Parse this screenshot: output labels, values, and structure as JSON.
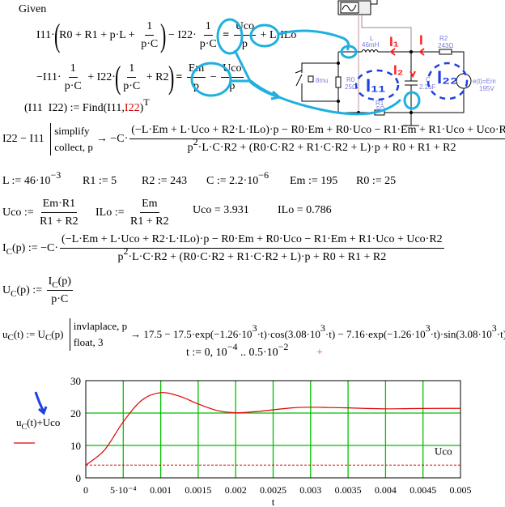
{
  "math": [
    {
      "id": "given",
      "tokens": [
        {
          "t": "Given"
        }
      ]
    },
    {
      "id": "equation-1",
      "tokens": [
        {
          "t": "I11·"
        },
        {
          "p": "("
        },
        {
          "t": "R0 + R1 + p·L + "
        },
        {
          "f": [
            "1",
            "p·C"
          ]
        },
        {
          "p": ")"
        },
        {
          "t": " − I22·"
        },
        {
          "f": [
            "1",
            "p·C"
          ]
        },
        {
          "t": " = ",
          "b": 1
        },
        {
          "f": [
            "Uco",
            "p"
          ]
        },
        {
          "t": " + L·ILo"
        }
      ]
    },
    {
      "id": "equation-2",
      "tokens": [
        {
          "t": "−I11·"
        },
        {
          "f": [
            "1",
            "p·C"
          ]
        },
        {
          "t": " + I22·"
        },
        {
          "p": "("
        },
        {
          "f": [
            "1",
            "p·C"
          ]
        },
        {
          "t": " + R2"
        },
        {
          "p": ")"
        },
        {
          "t": " = ",
          "b": 1
        },
        {
          "f": [
            "Em",
            "p"
          ]
        },
        {
          "t": " − "
        },
        {
          "f": [
            "Uco",
            "p"
          ]
        }
      ]
    },
    {
      "id": "find",
      "tokens": [
        {
          "t": "(I11  I22) := Find(I11,"
        },
        {
          "t": "I22",
          "c": "red"
        },
        {
          "t": ")"
        },
        {
          "s": "T"
        }
      ]
    },
    {
      "id": "simplify",
      "tokens": [
        {
          "t": "I22 − I11 "
        },
        {
          "ops": [
            "simplify",
            "collect, p"
          ]
        },
        {
          "t": "→ −C·"
        },
        {
          "f": [
            "(−L·Em + L·Uco + R2·L·ILo)·p − R0·Em + R0·Uco − R1·Em + R1·Uco + Uco·R2",
            [
              {
                "t": "p"
              },
              {
                "s": "2"
              },
              {
                "t": "·L·C·R2 + (R0·C·R2 + R1·C·R2 + L)·p + R0 + R1 + R2"
              }
            ]
          ]
        }
      ]
    },
    {
      "id": "def-L",
      "tokens": [
        {
          "t": "L := 46·10"
        },
        {
          "s": "−3"
        }
      ]
    },
    {
      "id": "def-R1",
      "tokens": [
        {
          "t": "R1 := 5"
        }
      ]
    },
    {
      "id": "def-R2",
      "tokens": [
        {
          "t": "R2 := 243"
        }
      ]
    },
    {
      "id": "def-C",
      "tokens": [
        {
          "t": "C := 2.2·10"
        },
        {
          "s": "−6"
        }
      ]
    },
    {
      "id": "def-Em",
      "tokens": [
        {
          "t": "Em := 195"
        }
      ]
    },
    {
      "id": "def-R0",
      "tokens": [
        {
          "t": "R0 := 25"
        }
      ]
    },
    {
      "id": "def-Uco",
      "tokens": [
        {
          "t": "Uco := "
        },
        {
          "f": [
            "Em·R1",
            "R1 + R2"
          ]
        }
      ]
    },
    {
      "id": "def-ILo",
      "tokens": [
        {
          "t": "ILo := "
        },
        {
          "f": [
            "Em",
            "R1 + R2"
          ]
        }
      ]
    },
    {
      "id": "result-Uco",
      "tokens": [
        {
          "t": "Uco = 3.931"
        }
      ]
    },
    {
      "id": "result-ILo",
      "tokens": [
        {
          "t": "ILo = 0.786"
        }
      ]
    },
    {
      "id": "def-Ic",
      "tokens": [
        {
          "t": "I"
        },
        {
          "sub": "C"
        },
        {
          "t": "(p) := −C·"
        },
        {
          "f": [
            "(−L·Em + L·Uco + R2·L·ILo)·p − R0·Em + R0·Uco − R1·Em + R1·Uco + Uco·R2",
            [
              {
                "t": "p"
              },
              {
                "s": "2"
              },
              {
                "t": "·L·C·R2 + (R0·C·R2 + R1·C·R2 + L)·p + R0 + R1 + R2"
              }
            ]
          ]
        }
      ]
    },
    {
      "id": "def-Uc",
      "tokens": [
        {
          "t": "U"
        },
        {
          "sub": "C"
        },
        {
          "t": "(p) := "
        },
        {
          "f": [
            [
              {
                "t": "I"
              },
              {
                "sub": "C"
              },
              {
                "t": "(p)"
              }
            ],
            "p·C"
          ]
        }
      ]
    },
    {
      "id": "def-uc-t",
      "small": 1,
      "tokens": [
        {
          "t": "u"
        },
        {
          "sub": "C"
        },
        {
          "t": "(t) := U"
        },
        {
          "sub": "C"
        },
        {
          "t": "(p) "
        },
        {
          "ops": [
            "invlaplace, p",
            "float, 3"
          ]
        },
        {
          "t": "→ 17.5 − 17.5·exp(−1.26·10"
        },
        {
          "s": "3"
        },
        {
          "t": "·t)·cos(3.08·10"
        },
        {
          "s": "3"
        },
        {
          "t": "·t) − 7.16·exp(−1.26·10"
        },
        {
          "s": "3"
        },
        {
          "t": "·t)·sin(3.08·10"
        },
        {
          "s": "3"
        },
        {
          "t": "·t)"
        }
      ]
    },
    {
      "id": "def-t-range",
      "tokens": [
        {
          "t": "t := 0, 10"
        },
        {
          "s": "−4"
        },
        {
          "t": " .. 0.5·10"
        },
        {
          "s": "−2"
        }
      ]
    }
  ],
  "circuit": {
    "labels": {
      "L": "L",
      "L_val": "46mH",
      "R2": "R2",
      "R2_val": "243Ω",
      "R0": "R0",
      "R0_val": "25Ω",
      "R1": "R1",
      "R1_val": "5Ω",
      "C": "C",
      "C_val": "2.2uF",
      "E": "e(t)=Em",
      "E_val": "195V",
      "switch": "8mu"
    },
    "annotations": {
      "I1": "I₁",
      "I": "I",
      "I2": "I₂",
      "I11": "I₁₁",
      "I22": "I₂₂"
    },
    "colors": {
      "wire": "#000000",
      "component_label": "#7a7adf",
      "hand_red": "#ff2020",
      "hand_blue": "#1f3fe0",
      "hand_cyan": "#1fb0e0",
      "probe": "#a080a0"
    }
  },
  "chart_data": {
    "type": "line",
    "xlabel": "t",
    "ylabel": "",
    "xlim": [
      0,
      0.005
    ],
    "ylim": [
      0,
      30
    ],
    "grid": true,
    "x_ticks": [
      0,
      0.0005,
      0.001,
      0.0015,
      0.002,
      0.0025,
      0.003,
      0.0035,
      0.004,
      0.0045,
      0.005
    ],
    "x_tick_labels": [
      "0",
      "5·10⁻⁴",
      "0.001",
      "0.0015",
      "0.002",
      "0.0025",
      "0.003",
      "0.0035",
      "0.004",
      "0.0045",
      "0.005"
    ],
    "y_ticks": [
      0,
      10,
      20,
      30
    ],
    "y_tick_labels": [
      "0",
      "10",
      "20",
      "30"
    ],
    "series": [
      {
        "name": "uC(t)+Uco",
        "legend_label": "u",
        "legend_sub": "C",
        "legend_rest": "(t)+Uco",
        "color": "#e00000",
        "style": "solid",
        "x": [
          0,
          0.00025,
          0.0005,
          0.00075,
          0.001,
          0.00125,
          0.0015,
          0.00175,
          0.002,
          0.00225,
          0.0025,
          0.00275,
          0.003,
          0.00325,
          0.0035,
          0.00375,
          0.004,
          0.00425,
          0.0045,
          0.00475,
          0.005
        ],
        "y": [
          3.93,
          8.6,
          17.3,
          24.0,
          26.3,
          25.2,
          22.8,
          20.8,
          20.1,
          20.4,
          21.0,
          21.6,
          21.8,
          21.7,
          21.6,
          21.4,
          21.3,
          21.35,
          21.4,
          21.43,
          21.43
        ]
      },
      {
        "name": "Uco",
        "label": "Uco",
        "color": "#e00000",
        "style": "dashed",
        "x": [
          0,
          0.005
        ],
        "y": [
          3.931,
          3.931
        ]
      }
    ],
    "legend_position": "left",
    "grid_color": "#00c000"
  }
}
